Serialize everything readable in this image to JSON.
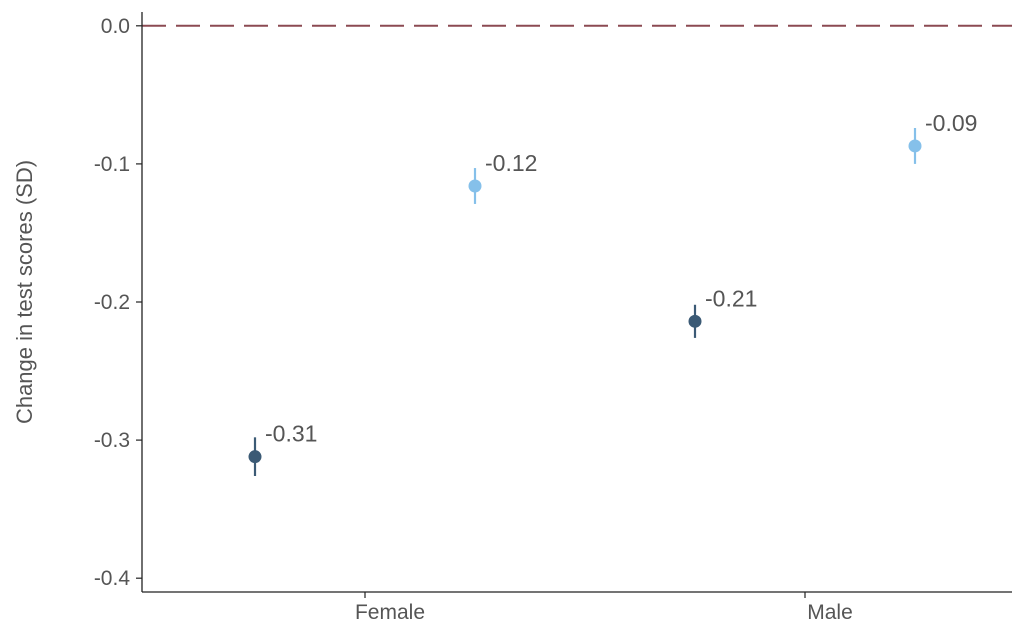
{
  "chart_data": {
    "type": "scatter",
    "title": "",
    "xlabel": "",
    "ylabel": "Change in test scores (SD)",
    "categories": [
      "Female",
      "Male"
    ],
    "ylim": [
      -0.41,
      0.01
    ],
    "yticks": [
      0.0,
      -0.1,
      -0.2,
      -0.3,
      -0.4
    ],
    "ytick_labels": [
      "0.0",
      "-0.1",
      "-0.2",
      "-0.3",
      "-0.4"
    ],
    "reference_line": {
      "y": 0.0,
      "style": "dashed",
      "color": "#8b4a52"
    },
    "grid": false,
    "legend": "none",
    "series": [
      {
        "color": "#3b5a75",
        "points": [
          {
            "category": "Female",
            "y": -0.312,
            "lower": -0.326,
            "upper": -0.298,
            "label": "-0.31"
          },
          {
            "category": "Male",
            "y": -0.214,
            "lower": -0.226,
            "upper": -0.202,
            "label": "-0.21"
          }
        ]
      },
      {
        "color": "#85c0ea",
        "points": [
          {
            "category": "Female",
            "y": -0.116,
            "lower": -0.129,
            "upper": -0.103,
            "label": "-0.12"
          },
          {
            "category": "Male",
            "y": -0.087,
            "lower": -0.1,
            "upper": -0.074,
            "label": "-0.09"
          }
        ]
      }
    ]
  }
}
